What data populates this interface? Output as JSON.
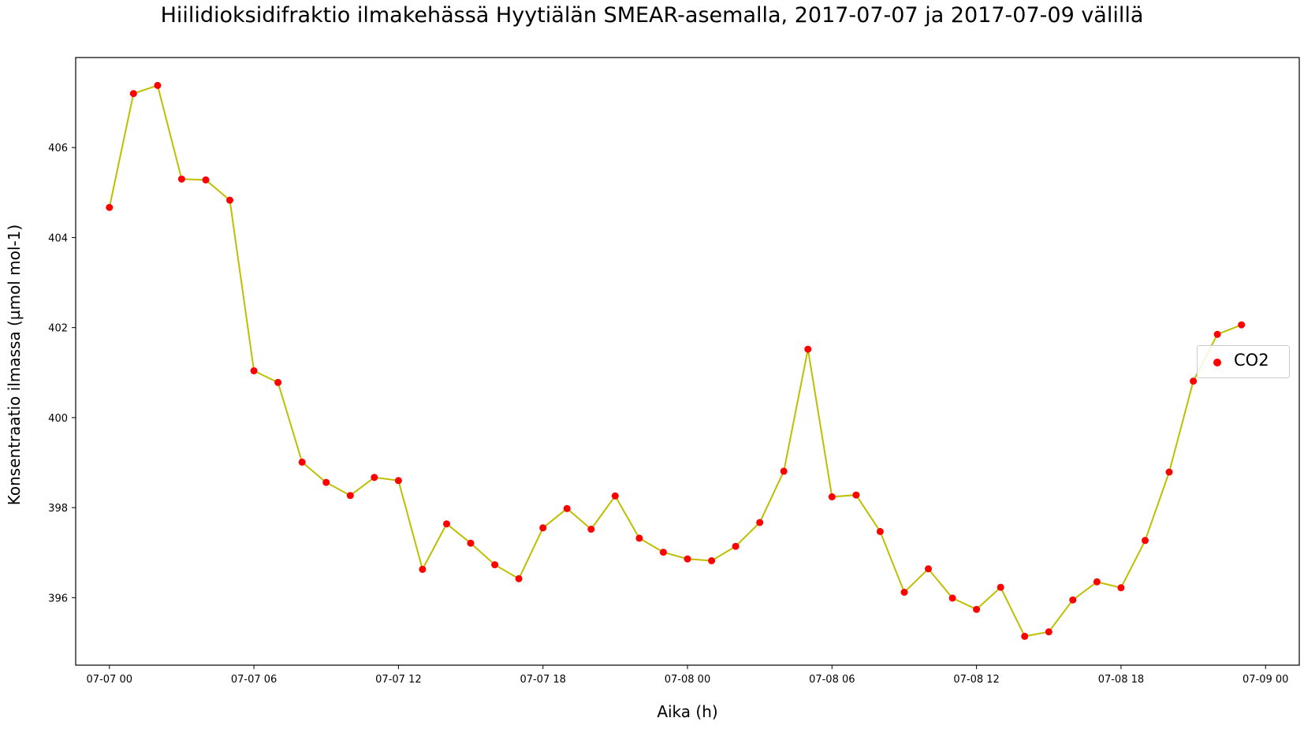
{
  "chart_data": {
    "type": "line",
    "title": "Hiilidioksidifraktio ilmakehässä Hyytiälän SMEAR-asemalla, 2017-07-07 ja 2017-07-09 välillä",
    "xlabel": "Aika (h)",
    "ylabel": "Konsentraatio ilmassa (µmol mol-1)",
    "xlim": [
      "2017-07-06 22:36",
      "2017-07-09 01:24"
    ],
    "ylim": [
      394.5,
      408.0
    ],
    "x_ticks": [
      {
        "value": "2017-07-07 00:00",
        "label": "07-07 00"
      },
      {
        "value": "2017-07-07 06:00",
        "label": "07-07 06"
      },
      {
        "value": "2017-07-07 12:00",
        "label": "07-07 12"
      },
      {
        "value": "2017-07-07 18:00",
        "label": "07-07 18"
      },
      {
        "value": "2017-07-08 00:00",
        "label": "07-08 00"
      },
      {
        "value": "2017-07-08 06:00",
        "label": "07-08 06"
      },
      {
        "value": "2017-07-08 12:00",
        "label": "07-08 12"
      },
      {
        "value": "2017-07-08 18:00",
        "label": "07-08 18"
      },
      {
        "value": "2017-07-09 00:00",
        "label": "07-09 00"
      }
    ],
    "y_ticks": [
      396,
      398,
      400,
      402,
      404,
      406
    ],
    "grid": false,
    "legend": {
      "position": "right",
      "entries": [
        "CO2"
      ]
    },
    "series": [
      {
        "name": "CO2",
        "marker_color": "#ff0000",
        "line_color": "#bfbf00",
        "x": [
          "2017-07-07 00:00",
          "2017-07-07 01:00",
          "2017-07-07 02:00",
          "2017-07-07 03:00",
          "2017-07-07 04:00",
          "2017-07-07 05:00",
          "2017-07-07 06:00",
          "2017-07-07 07:00",
          "2017-07-07 08:00",
          "2017-07-07 09:00",
          "2017-07-07 10:00",
          "2017-07-07 11:00",
          "2017-07-07 12:00",
          "2017-07-07 13:00",
          "2017-07-07 14:00",
          "2017-07-07 15:00",
          "2017-07-07 16:00",
          "2017-07-07 17:00",
          "2017-07-07 18:00",
          "2017-07-07 19:00",
          "2017-07-07 20:00",
          "2017-07-07 21:00",
          "2017-07-07 22:00",
          "2017-07-07 23:00",
          "2017-07-08 00:00",
          "2017-07-08 01:00",
          "2017-07-08 02:00",
          "2017-07-08 03:00",
          "2017-07-08 04:00",
          "2017-07-08 05:00",
          "2017-07-08 06:00",
          "2017-07-08 07:00",
          "2017-07-08 08:00",
          "2017-07-08 09:00",
          "2017-07-08 10:00",
          "2017-07-08 11:00",
          "2017-07-08 12:00",
          "2017-07-08 13:00",
          "2017-07-08 14:00",
          "2017-07-08 15:00",
          "2017-07-08 16:00",
          "2017-07-08 17:00",
          "2017-07-08 18:00",
          "2017-07-08 19:00",
          "2017-07-08 20:00",
          "2017-07-08 21:00",
          "2017-07-08 22:00",
          "2017-07-08 23:00"
        ],
        "y": [
          404.67,
          407.2,
          407.38,
          405.3,
          405.28,
          404.83,
          401.04,
          400.78,
          399.01,
          398.56,
          398.27,
          398.67,
          398.6,
          396.63,
          397.64,
          397.21,
          396.73,
          396.42,
          397.55,
          397.98,
          397.52,
          398.26,
          397.32,
          397.01,
          396.86,
          396.82,
          397.14,
          397.67,
          398.81,
          401.52,
          398.24,
          398.28,
          397.47,
          396.12,
          396.64,
          395.99,
          395.74,
          396.23,
          395.14,
          395.24,
          395.95,
          396.35,
          396.22,
          397.27,
          398.79,
          400.81,
          401.85,
          402.06
        ]
      }
    ]
  }
}
